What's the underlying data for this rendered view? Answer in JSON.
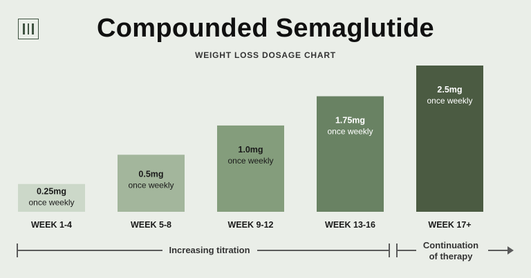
{
  "header": {
    "title": "Compounded Semaglutide",
    "subtitle": "WEIGHT LOSS DOSAGE CHART"
  },
  "chart_data": {
    "type": "bar",
    "title": "Compounded Semaglutide",
    "subtitle": "WEIGHT LOSS DOSAGE CHART",
    "categories": [
      "WEEK 1-4",
      "WEEK 5-8",
      "WEEK 9-12",
      "WEEK 13-16",
      "WEEK 17+"
    ],
    "values": [
      0.25,
      0.5,
      1.0,
      1.75,
      2.5
    ],
    "labels": [
      "0.25mg",
      "0.5mg",
      "1.0mg",
      "1.75mg",
      "2.5mg"
    ],
    "frequency": "once weekly",
    "bar_levels": [
      0.19,
      0.39,
      0.59,
      0.79,
      1.0
    ],
    "colors": [
      "#ccd8c9",
      "#a3b69c",
      "#849d7c",
      "#698263",
      "#4b5b42"
    ],
    "label_colors": [
      "#1a1a1a",
      "#1a1a1a",
      "#1a1a1a",
      "#ffffff",
      "#ffffff"
    ],
    "xlabel": "",
    "ylabel": "",
    "grid": false,
    "legend": "none"
  },
  "phases": {
    "increasing": "Increasing titration",
    "continuation_line1": "Continuation",
    "continuation_line2": "of therapy"
  }
}
